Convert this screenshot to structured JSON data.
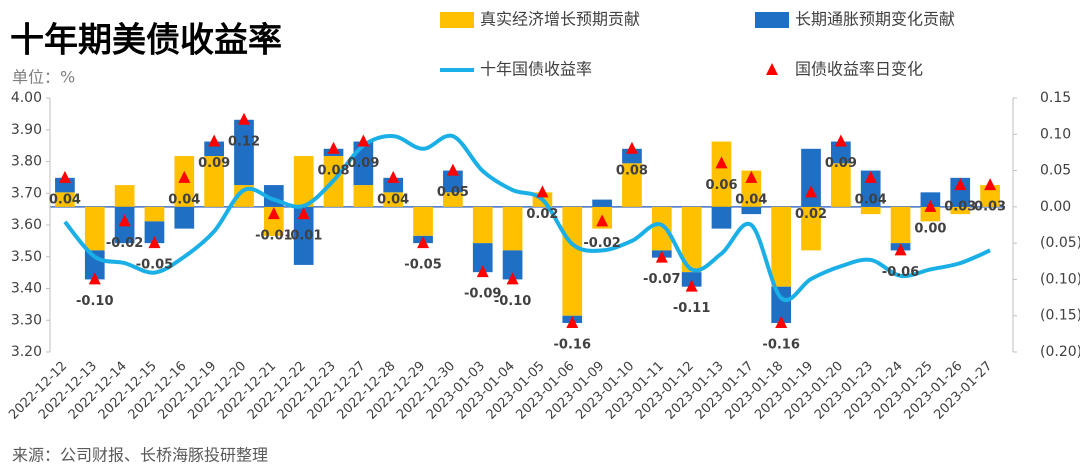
{
  "chart_data": {
    "type": "combo",
    "title": "十年期美债收益率",
    "unit_label": "单位：%",
    "source": "来源：公司财报、长桥海豚投研整理",
    "categories": [
      "2022-12-12",
      "2022-12-13",
      "2022-12-14",
      "2022-12-15",
      "2022-12-16",
      "2022-12-19",
      "2022-12-20",
      "2022-12-21",
      "2022-12-22",
      "2022-12-23",
      "2022-12-27",
      "2022-12-28",
      "2022-12-29",
      "2022-12-30",
      "2023-01-03",
      "2023-01-04",
      "2023-01-05",
      "2023-01-06",
      "2023-01-09",
      "2023-01-10",
      "2023-01-11",
      "2023-01-12",
      "2023-01-13",
      "2023-01-17",
      "2023-01-18",
      "2023-01-19",
      "2023-01-20",
      "2023-01-23",
      "2023-01-24",
      "2023-01-25",
      "2023-01-26",
      "2023-01-27"
    ],
    "series": [
      {
        "name": "真实经济增长预期贡献",
        "type": "bar",
        "axis": "y2",
        "color": "#FFC000",
        "values": [
          0.02,
          -0.06,
          0.03,
          -0.02,
          0.07,
          0.07,
          0.03,
          -0.04,
          0.07,
          0.07,
          0.03,
          0.02,
          -0.04,
          0.02,
          -0.05,
          -0.06,
          0.02,
          -0.15,
          -0.03,
          0.06,
          -0.06,
          -0.09,
          0.09,
          0.05,
          -0.11,
          -0.06,
          0.06,
          -0.01,
          -0.05,
          -0.02,
          -0.01,
          0.03
        ]
      },
      {
        "name": "长期通胀预期变化贡献",
        "type": "bar",
        "axis": "y2",
        "color": "#1F6FC5",
        "values": [
          0.02,
          -0.04,
          -0.05,
          -0.03,
          -0.03,
          0.02,
          0.09,
          0.03,
          -0.08,
          0.01,
          0.06,
          0.02,
          -0.01,
          0.03,
          -0.04,
          -0.04,
          0,
          -0.01,
          0.01,
          0.02,
          -0.01,
          -0.02,
          -0.03,
          -0.01,
          -0.05,
          0.08,
          0.03,
          0.05,
          -0.01,
          0.02,
          0.04,
          0
        ]
      },
      {
        "name": "十年国债收益率",
        "type": "line",
        "axis": "y",
        "color": "#1AAFE6",
        "values": [
          3.61,
          3.5,
          3.48,
          3.45,
          3.5,
          3.58,
          3.71,
          3.68,
          3.66,
          3.74,
          3.85,
          3.88,
          3.84,
          3.88,
          3.77,
          3.71,
          3.68,
          3.54,
          3.52,
          3.55,
          3.6,
          3.46,
          3.51,
          3.6,
          3.37,
          3.43,
          3.47,
          3.49,
          3.44,
          3.46,
          3.48,
          3.52
        ]
      },
      {
        "name": "国债收益率日变化",
        "type": "scatter",
        "axis": "y2",
        "color": "#FF0000",
        "values": [
          0.04,
          -0.1,
          -0.02,
          -0.05,
          0.04,
          0.09,
          0.12,
          -0.01,
          -0.01,
          0.08,
          0.09,
          0.04,
          -0.05,
          0.05,
          -0.09,
          -0.1,
          0.02,
          -0.16,
          -0.02,
          0.08,
          -0.07,
          -0.11,
          0.06,
          0.04,
          -0.16,
          0.02,
          0.09,
          0.04,
          -0.06,
          0,
          0.03,
          0.03
        ],
        "value_labels": [
          "0.04",
          "-0.10",
          "-0.02",
          "-0.05",
          "0.04",
          "0.09",
          "0.12",
          "-0.01",
          "-0.01",
          "0.08",
          "0.09",
          "0.04",
          "-0.05",
          "0.05",
          "-0.09",
          "-0.10",
          "0.02",
          "-0.16",
          "-0.02",
          "0.08",
          "-0.07",
          "-0.11",
          "0.06",
          "0.04",
          "-0.16",
          "0.02",
          "0.09",
          "0.04",
          "-0.06",
          "0.00",
          "0.03",
          "0.03"
        ]
      }
    ],
    "ylim": [
      3.2,
      4.0
    ],
    "yticks": [
      {
        "value": 3.2,
        "label": "3.20"
      },
      {
        "value": 3.3,
        "label": "3.30"
      },
      {
        "value": 3.4,
        "label": "3.40"
      },
      {
        "value": 3.5,
        "label": "3.50"
      },
      {
        "value": 3.6,
        "label": "3.60"
      },
      {
        "value": 3.7,
        "label": "3.70"
      },
      {
        "value": 3.8,
        "label": "3.80"
      },
      {
        "value": 3.9,
        "label": "3.90"
      },
      {
        "value": 4.0,
        "label": "4.00"
      }
    ],
    "y2lim": [
      -0.2,
      0.15
    ],
    "y2ticks": [
      {
        "value": -0.2,
        "label": "(0.20)"
      },
      {
        "value": -0.15,
        "label": "(0.15)"
      },
      {
        "value": -0.1,
        "label": "(0.10)"
      },
      {
        "value": -0.05,
        "label": "(0.05)"
      },
      {
        "value": 0,
        "label": "0.00"
      },
      {
        "value": 0.05,
        "label": "0.05"
      },
      {
        "value": 0.1,
        "label": "0.10"
      },
      {
        "value": 0.15,
        "label": "0.15"
      }
    ]
  }
}
